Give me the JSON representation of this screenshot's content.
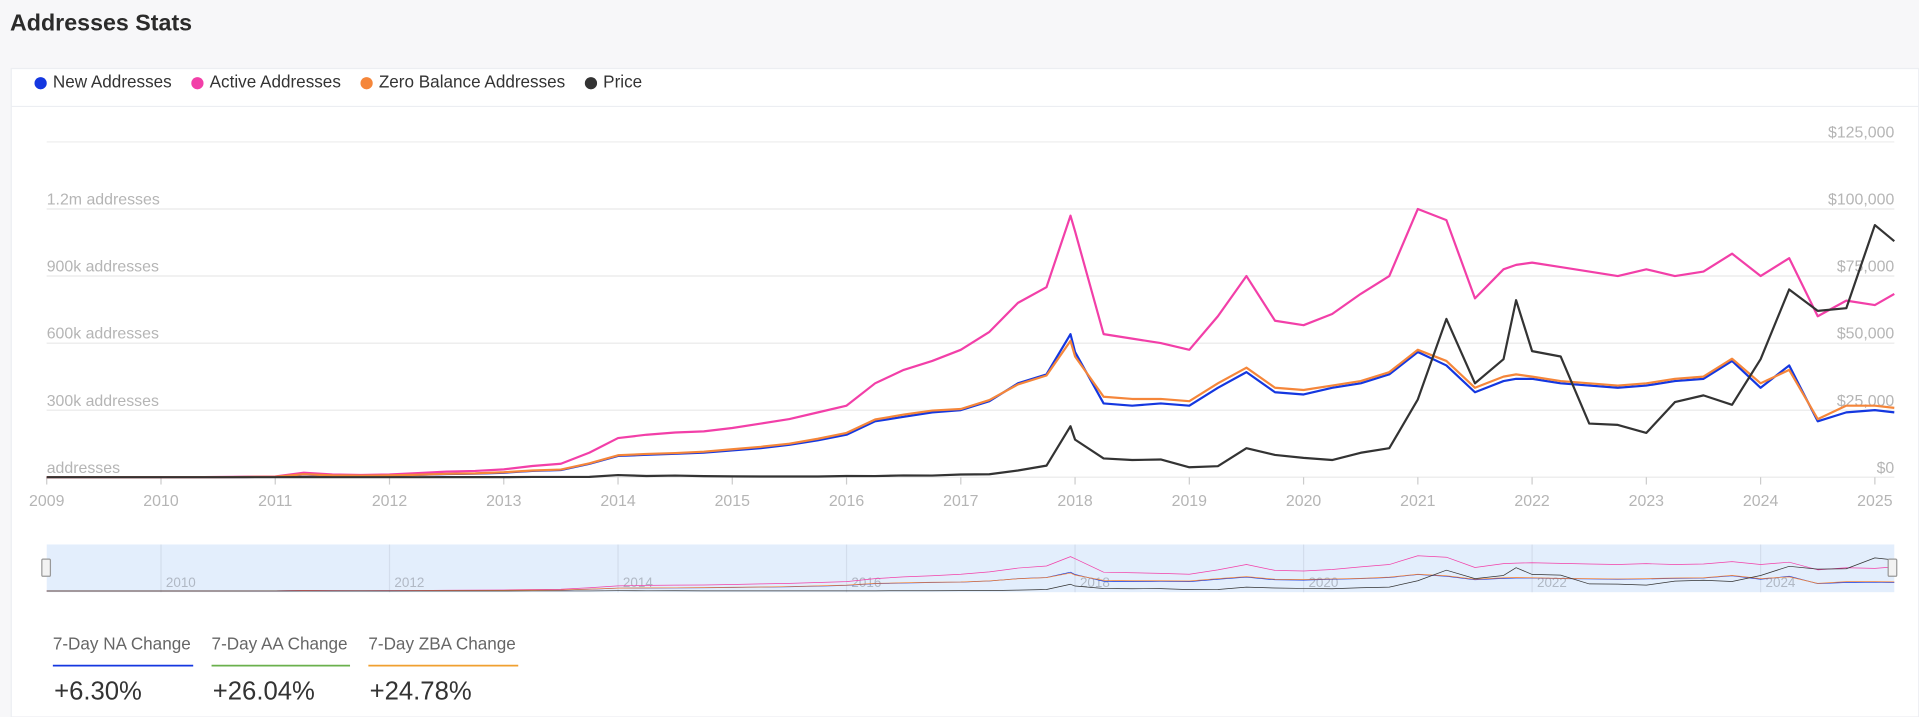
{
  "header": {
    "title": "Addresses Stats"
  },
  "chart_data": {
    "type": "line",
    "x": [
      2009,
      2009.25,
      2009.5,
      2009.75,
      2010,
      2010.25,
      2010.5,
      2010.75,
      2011,
      2011.25,
      2011.5,
      2011.75,
      2012,
      2012.25,
      2012.5,
      2012.75,
      2013,
      2013.25,
      2013.5,
      2013.75,
      2014,
      2014.25,
      2014.5,
      2014.75,
      2015,
      2015.25,
      2015.5,
      2015.75,
      2016,
      2016.25,
      2016.5,
      2016.75,
      2017,
      2017.25,
      2017.5,
      2017.75,
      2017.96,
      2018,
      2018.25,
      2018.5,
      2018.75,
      2019,
      2019.25,
      2019.5,
      2019.75,
      2020,
      2020.25,
      2020.5,
      2020.75,
      2021,
      2021.25,
      2021.5,
      2021.75,
      2021.86,
      2022,
      2022.25,
      2022.5,
      2022.75,
      2023,
      2023.25,
      2023.5,
      2023.75,
      2024,
      2024.25,
      2024.5,
      2024.75,
      2025,
      2025.17
    ],
    "series": [
      {
        "name": "New Addresses",
        "color": "#1437e0",
        "axis": "y",
        "values": [
          0,
          0,
          0,
          0,
          0,
          0,
          0,
          1000,
          2000,
          12000,
          7000,
          6000,
          7000,
          10000,
          14000,
          16000,
          20000,
          28000,
          32000,
          60000,
          95000,
          100000,
          105000,
          110000,
          120000,
          130000,
          145000,
          165000,
          190000,
          250000,
          270000,
          290000,
          300000,
          340000,
          420000,
          460000,
          640000,
          560000,
          330000,
          320000,
          330000,
          320000,
          400000,
          470000,
          380000,
          370000,
          400000,
          420000,
          460000,
          560000,
          500000,
          380000,
          430000,
          440000,
          440000,
          420000,
          410000,
          400000,
          410000,
          430000,
          440000,
          520000,
          400000,
          500000,
          250000,
          290000,
          300000,
          290000
        ]
      },
      {
        "name": "Active Addresses",
        "color": "#f23fa8",
        "axis": "y",
        "values": [
          0,
          0,
          0,
          0,
          0,
          0,
          1000,
          2000,
          3000,
          20000,
          12000,
          10000,
          12000,
          18000,
          25000,
          28000,
          35000,
          50000,
          60000,
          110000,
          175000,
          190000,
          200000,
          205000,
          220000,
          240000,
          260000,
          290000,
          320000,
          420000,
          480000,
          520000,
          570000,
          650000,
          780000,
          850000,
          1170000,
          1100000,
          640000,
          620000,
          600000,
          570000,
          720000,
          900000,
          700000,
          680000,
          730000,
          820000,
          900000,
          1200000,
          1150000,
          800000,
          930000,
          950000,
          960000,
          940000,
          920000,
          900000,
          930000,
          900000,
          920000,
          1000000,
          900000,
          980000,
          720000,
          790000,
          770000,
          820000
        ]
      },
      {
        "name": "Zero Balance Addresses",
        "color": "#f5863a",
        "axis": "y",
        "values": [
          0,
          0,
          0,
          0,
          0,
          0,
          0,
          1000,
          2000,
          13000,
          8000,
          7000,
          8000,
          11000,
          15000,
          17000,
          22000,
          30000,
          34000,
          62000,
          98000,
          104000,
          108000,
          114000,
          125000,
          136000,
          150000,
          172000,
          198000,
          258000,
          280000,
          298000,
          305000,
          345000,
          415000,
          455000,
          610000,
          540000,
          360000,
          350000,
          350000,
          340000,
          420000,
          490000,
          400000,
          390000,
          410000,
          430000,
          470000,
          570000,
          520000,
          400000,
          450000,
          460000,
          450000,
          430000,
          420000,
          410000,
          420000,
          440000,
          450000,
          530000,
          420000,
          480000,
          260000,
          320000,
          320000,
          310000
        ]
      },
      {
        "name": "Price",
        "color": "#333333",
        "axis": "y2",
        "values": [
          0,
          0,
          0,
          0,
          0,
          0,
          0.06,
          0.2,
          0.3,
          15,
          5,
          3,
          5,
          5,
          10,
          12,
          13,
          100,
          90,
          120,
          800,
          450,
          600,
          400,
          300,
          250,
          250,
          240,
          430,
          420,
          650,
          600,
          1000,
          1100,
          2500,
          4300,
          19000,
          14000,
          7000,
          6400,
          6600,
          3700,
          4100,
          10800,
          8300,
          7200,
          6400,
          9100,
          10800,
          29000,
          59000,
          35000,
          44000,
          66000,
          47000,
          45000,
          20000,
          19500,
          16500,
          28000,
          30500,
          27000,
          44000,
          70000,
          62000,
          63000,
          94000,
          88000
        ]
      }
    ],
    "xlim": [
      2009,
      2025.17
    ],
    "xticks": [
      2009,
      2010,
      2011,
      2012,
      2013,
      2014,
      2015,
      2016,
      2017,
      2018,
      2019,
      2020,
      2021,
      2022,
      2023,
      2024,
      2025
    ],
    "ylim": [
      0,
      1500000
    ],
    "yticks": [
      {
        "value": 0,
        "label": "addresses"
      },
      {
        "value": 300000,
        "label": "300k addresses"
      },
      {
        "value": 600000,
        "label": "600k addresses"
      },
      {
        "value": 900000,
        "label": "900k addresses"
      },
      {
        "value": 1200000,
        "label": "1.2m addresses"
      }
    ],
    "y2lim": [
      0,
      125000
    ],
    "y2ticks": [
      {
        "value": 0,
        "label": "$0"
      },
      {
        "value": 25000,
        "label": "$25,000"
      },
      {
        "value": 50000,
        "label": "$50,000"
      },
      {
        "value": 75000,
        "label": "$75,000"
      },
      {
        "value": 100000,
        "label": "$100,000"
      },
      {
        "value": 125000,
        "label": "$125,000"
      }
    ],
    "grid": true,
    "legend": "top-left",
    "navigator_xticks": [
      2010,
      2012,
      2014,
      2016,
      2018,
      2020,
      2022,
      2024
    ]
  },
  "stats": [
    {
      "label": "7-Day NA Change",
      "value": "+6.30%",
      "color": "#1437e0"
    },
    {
      "label": "7-Day AA Change",
      "value": "+26.04%",
      "color": "#6ab04c"
    },
    {
      "label": "7-Day ZBA Change",
      "value": "+24.78%",
      "color": "#f0a030"
    }
  ]
}
